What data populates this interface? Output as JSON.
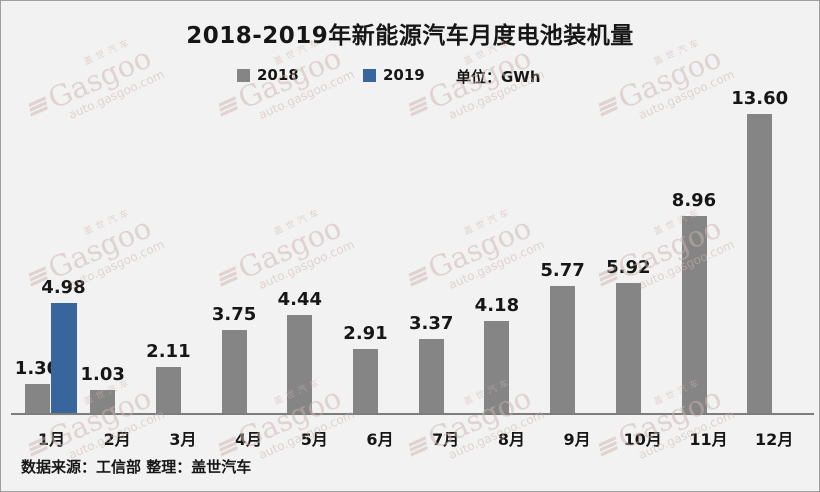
{
  "title": "2018-2019年新能源汽车月度电池装机量",
  "legend": {
    "items": [
      {
        "label": "2018",
        "color": "#858585"
      },
      {
        "label": "2019",
        "color": "#38659B"
      }
    ],
    "unit_label": "单位：GWh"
  },
  "footer": {
    "source_label": "数据来源：工信部  整理：盖世汽车"
  },
  "watermark": {
    "brand": "Gasgoo",
    "url": "auto.gasgoo.com",
    "cn": "盖世汽车"
  },
  "chart_data": {
    "type": "bar",
    "title": "2018-2019年新能源汽车月度电池装机量",
    "categories": [
      "1月",
      "2月",
      "3月",
      "4月",
      "5月",
      "6月",
      "7月",
      "8月",
      "9月",
      "10月",
      "11月",
      "12月"
    ],
    "series": [
      {
        "name": "2018",
        "color": "#858585",
        "values": [
          1.3,
          1.03,
          2.11,
          3.75,
          4.44,
          2.91,
          3.37,
          4.18,
          5.77,
          5.92,
          8.96,
          13.6
        ]
      },
      {
        "name": "2019",
        "color": "#38659B",
        "values": [
          4.98,
          null,
          null,
          null,
          null,
          null,
          null,
          null,
          null,
          null,
          null,
          null
        ]
      }
    ],
    "xlabel": "",
    "ylabel": "GWh",
    "unit": "GWh",
    "ylim": [
      0,
      14.5
    ],
    "grid": false,
    "legend_position": "top",
    "value_labels": true,
    "value_format": "0.00"
  }
}
